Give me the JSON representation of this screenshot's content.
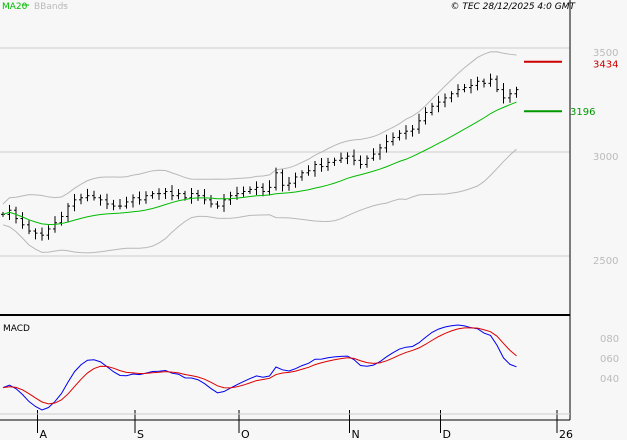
{
  "legend": {
    "ma": "MA20",
    "bb": "BBands"
  },
  "copyright": "© TEC 28/12/2025 4:0 GMT",
  "colors": {
    "ma": "#00bb00",
    "bands": "#b8b8b8",
    "resistance": "#cc0000",
    "support": "#009900",
    "signal": "#dd0000",
    "macd": "#0000ee"
  },
  "chart_data": {
    "type": "ohlc",
    "ylim": [
      2250,
      3600
    ],
    "yticks": [
      "3500",
      "3000",
      "2500"
    ],
    "ytick_values": [
      3500,
      3000,
      2500
    ],
    "resistance": {
      "value": 3434,
      "label": "3434"
    },
    "support": {
      "value": 3196,
      "label": "3196"
    },
    "macd": {
      "title": "MACD",
      "ticks": [
        "080",
        "060",
        "040"
      ]
    },
    "xticks": [
      {
        "label": "A",
        "i": 5
      },
      {
        "label": "S",
        "i": 20
      },
      {
        "label": "O",
        "i": 36
      },
      {
        "label": "N",
        "i": 53
      },
      {
        "label": "D",
        "i": 67
      },
      {
        "label": "26",
        "i": 86
      }
    ],
    "closes": [
      2700,
      2720,
      2680,
      2650,
      2620,
      2610,
      2600,
      2630,
      2660,
      2690,
      2740,
      2770,
      2780,
      2790,
      2780,
      2770,
      2750,
      2740,
      2740,
      2760,
      2780,
      2770,
      2790,
      2800,
      2800,
      2810,
      2790,
      2800,
      2780,
      2800,
      2790,
      2770,
      2750,
      2740,
      2770,
      2790,
      2800,
      2810,
      2820,
      2830,
      2810,
      2830,
      2900,
      2840,
      2850,
      2880,
      2900,
      2910,
      2940,
      2930,
      2950,
      2960,
      2970,
      2980,
      2960,
      2940,
      2970,
      2990,
      3020,
      3050,
      3070,
      3090,
      3100,
      3110,
      3150,
      3190,
      3220,
      3240,
      3260,
      3280,
      3300,
      3310,
      3320,
      3340,
      3330,
      3350,
      3300,
      3260,
      3280,
      3300
    ]
  }
}
